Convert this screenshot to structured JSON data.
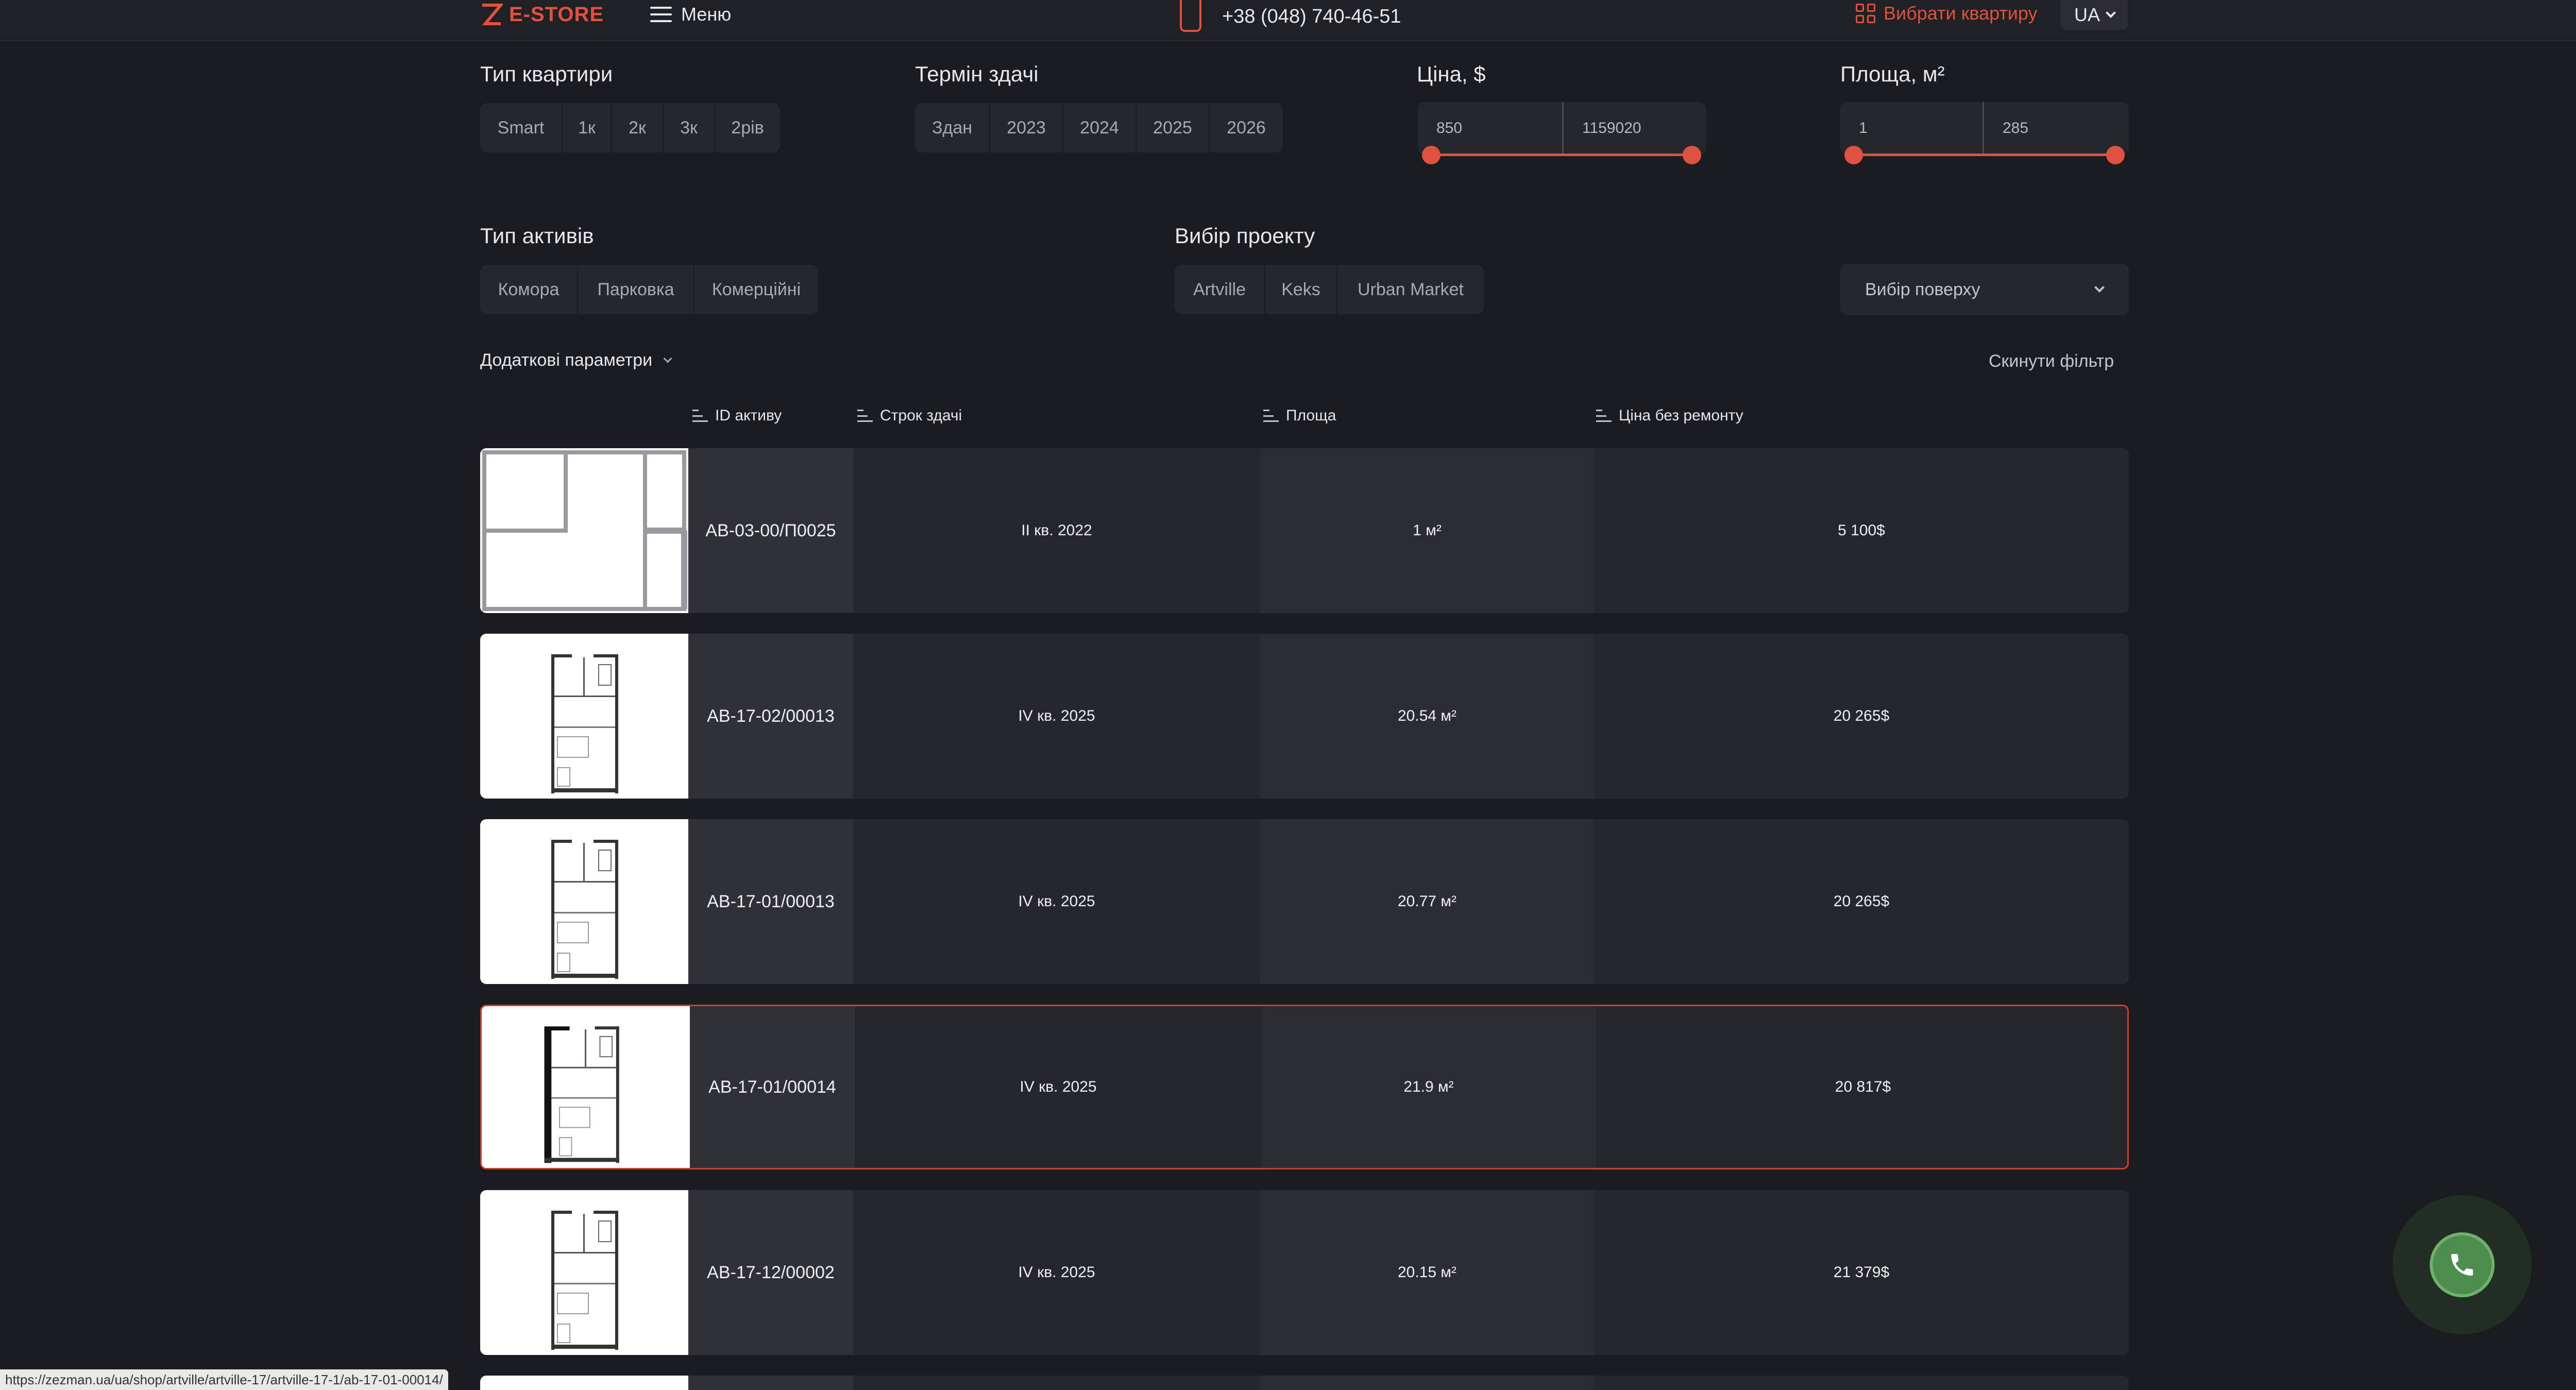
{
  "header": {
    "logo_text": "E-STORE",
    "menu_label": "Меню",
    "phone": "+38 (048) 740-46-51",
    "choose_apartment": "Вибрати квартиру",
    "language": "UA"
  },
  "filters": {
    "apartment_type": {
      "title": "Тип квартири",
      "options": [
        "Smart",
        "1к",
        "2к",
        "3к",
        "2рів"
      ]
    },
    "delivery_term": {
      "title": "Термін здачі",
      "options": [
        "Здан",
        "2023",
        "2024",
        "2025",
        "2026"
      ]
    },
    "price": {
      "title": "Ціна, $",
      "min": "850",
      "max": "1159020"
    },
    "area": {
      "title": "Площа, м²",
      "min": "1",
      "max": "285"
    },
    "asset_type": {
      "title": "Тип активів",
      "options": [
        "Комора",
        "Парковка",
        "Комерційні"
      ]
    },
    "project": {
      "title": "Вибір проекту",
      "options": [
        "Artville",
        "Keks",
        "Urban Market"
      ]
    },
    "floor_select": {
      "placeholder": "Вибір поверху"
    },
    "more_params": "Додаткові параметри",
    "reset": "Скинути фільтр"
  },
  "table": {
    "columns": [
      "ID активу",
      "Строк здачі",
      "Площа",
      "Ціна без ремонту"
    ],
    "rows": [
      {
        "id": "AB-03-00/П0025",
        "term": "II кв. 2022",
        "area": "1 м²",
        "price": "5 100$",
        "plan": "storage"
      },
      {
        "id": "AB-17-02/00013",
        "term": "IV кв. 2025",
        "area": "20.54 м²",
        "price": "20 265$",
        "plan": "studio"
      },
      {
        "id": "AB-17-01/00013",
        "term": "IV кв. 2025",
        "area": "20.77 м²",
        "price": "20 265$",
        "plan": "studio"
      },
      {
        "id": "AB-17-01/00014",
        "term": "IV кв. 2025",
        "area": "21.9 м²",
        "price": "20 817$",
        "plan": "studio",
        "active": true
      },
      {
        "id": "AB-17-12/00002",
        "term": "IV кв. 2025",
        "area": "20.15 м²",
        "price": "21 379$",
        "plan": "studio"
      }
    ]
  },
  "status_url": "https://zezman.ua/ua/shop/artville/artville-17/artville-17-1/ab-17-01-00014/",
  "colors": {
    "accent": "#e0513f",
    "background": "#1b1c20",
    "call_button": "#4c8d4e"
  }
}
